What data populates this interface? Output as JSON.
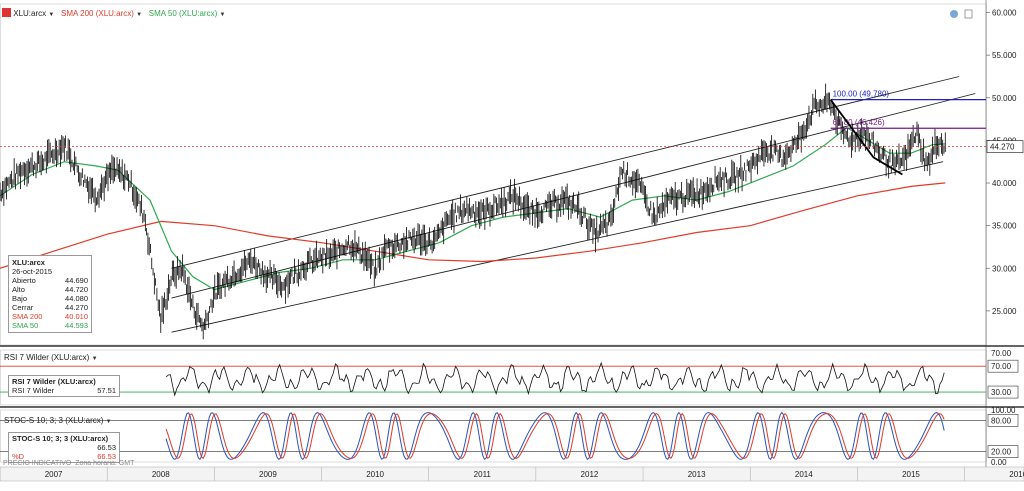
{
  "header": {
    "symbol_label": "XLU:arcx",
    "sma200_label": "SMA 200 (XLU:arcx)",
    "sma50_label": "SMA 50 (XLU:arcx)",
    "dropdown_glyph": "▼"
  },
  "colors": {
    "price": "#000000",
    "sma200": "#e23a2a",
    "sma50": "#2fa84f",
    "channel": "#222222",
    "fib100": "#2020c0",
    "fib618": "#7a1a8a",
    "rsi": "#111111",
    "stoch_k": "#2a52be",
    "stoch_d": "#e23a2a",
    "last_price_line": "#e23a2a"
  },
  "infobox": {
    "title": "XLU:arcx",
    "date": "26-oct-2015",
    "rows": [
      {
        "label": "Abierto",
        "value": "44.690"
      },
      {
        "label": "Alto",
        "value": "44.720"
      },
      {
        "label": "Bajo",
        "value": "44.080"
      },
      {
        "label": "Cerrar",
        "value": "44.270"
      },
      {
        "label": "SMA 200",
        "value": "40.010"
      },
      {
        "label": "SMA 50",
        "value": "44.593"
      }
    ]
  },
  "rsi_panel": {
    "header": "RSI 7 Wilder (XLU:arcx)",
    "box_title": "RSI 7 Wilder (XLU:arcx)",
    "box_label": "RSI 7 Wilder",
    "box_value": "57.51"
  },
  "stoch_panel": {
    "header": "STOC-S 10; 3; 3 (XLU:arcx)",
    "box_title": "STOC-S 10; 3; 3 (XLU:arcx)",
    "box_value1": "66.53",
    "box_label2": "%D",
    "box_value2": "66.53"
  },
  "footer": {
    "disclaimer": "PRECIO INDICATIVO",
    "timezone": "Zona horaria: GMT"
  },
  "chart_data": [
    {
      "type": "line",
      "name": "price",
      "x_years": [
        "2007",
        "2008",
        "2009",
        "2010",
        "2011",
        "2012",
        "2013",
        "2014",
        "2015",
        "2016"
      ],
      "y_ticks": [
        "60.000",
        "55.000",
        "50.000",
        "45.000",
        "40.000",
        "35.000",
        "30.000",
        "25.000"
      ],
      "ylim": [
        21,
        61
      ],
      "last_price": {
        "value": 44.27,
        "label": "44.270"
      },
      "series": [
        {
          "name": "XLU:arcx",
          "x": [
            2007.0,
            2007.2,
            2007.4,
            2007.6,
            2007.75,
            2007.9,
            2008.05,
            2008.2,
            2008.35,
            2008.5,
            2008.6,
            2008.7,
            2008.8,
            2008.9,
            2009.0,
            2009.1,
            2009.2,
            2009.35,
            2009.5,
            2009.65,
            2009.8,
            2009.95,
            2010.1,
            2010.25,
            2010.4,
            2010.5,
            2010.6,
            2010.75,
            2010.9,
            2011.05,
            2011.2,
            2011.35,
            2011.5,
            2011.65,
            2011.8,
            2011.95,
            2012.1,
            2012.25,
            2012.4,
            2012.55,
            2012.7,
            2012.8,
            2012.95,
            2013.1,
            2013.25,
            2013.4,
            2013.55,
            2013.7,
            2013.85,
            2014.0,
            2014.15,
            2014.3,
            2014.45,
            2014.6,
            2014.75,
            2014.85,
            2014.95,
            2015.05,
            2015.15,
            2015.25,
            2015.35,
            2015.45,
            2015.55,
            2015.65,
            2015.75,
            2015.82
          ],
          "values": [
            39.0,
            41.5,
            42.5,
            44.5,
            41.0,
            38.5,
            41.5,
            40.5,
            36.0,
            24.0,
            29.0,
            30.0,
            25.5,
            23.0,
            27.0,
            28.5,
            29.5,
            31.0,
            29.0,
            28.0,
            30.0,
            31.0,
            31.5,
            33.0,
            31.5,
            29.5,
            32.5,
            33.0,
            33.5,
            33.0,
            36.0,
            37.0,
            36.5,
            37.5,
            38.5,
            36.5,
            37.0,
            38.0,
            37.0,
            34.0,
            35.5,
            41.5,
            40.0,
            36.0,
            38.0,
            38.5,
            39.0,
            40.5,
            40.5,
            42.0,
            44.0,
            43.0,
            45.0,
            49.0,
            49.5,
            46.0,
            45.0,
            46.0,
            44.5,
            43.0,
            42.0,
            43.0,
            46.0,
            42.0,
            45.0,
            44.27
          ]
        },
        {
          "name": "SMA 200",
          "x": [
            2007.0,
            2007.5,
            2008.0,
            2008.5,
            2009.0,
            2009.5,
            2010.0,
            2010.5,
            2011.0,
            2011.5,
            2012.0,
            2012.5,
            2013.0,
            2013.5,
            2014.0,
            2014.5,
            2015.0,
            2015.5,
            2015.82
          ],
          "values": [
            30.0,
            32.0,
            34.0,
            35.5,
            35.0,
            33.8,
            33.0,
            32.0,
            31.0,
            30.8,
            31.2,
            32.0,
            33.0,
            34.2,
            35.0,
            36.8,
            38.5,
            39.6,
            40.01
          ]
        },
        {
          "name": "SMA 50",
          "x": [
            2007.0,
            2007.3,
            2007.6,
            2007.9,
            2008.1,
            2008.4,
            2008.6,
            2008.8,
            2009.0,
            2009.3,
            2009.6,
            2009.9,
            2010.2,
            2010.5,
            2010.8,
            2011.1,
            2011.4,
            2011.7,
            2012.0,
            2012.3,
            2012.6,
            2012.9,
            2013.2,
            2013.5,
            2013.8,
            2014.1,
            2014.4,
            2014.7,
            2014.9,
            2015.1,
            2015.3,
            2015.5,
            2015.7,
            2015.82
          ],
          "values": [
            38.5,
            41.0,
            42.5,
            42.0,
            41.5,
            38.0,
            32.0,
            29.0,
            27.5,
            28.5,
            29.5,
            30.0,
            31.0,
            31.0,
            32.0,
            33.0,
            35.0,
            36.0,
            36.5,
            37.0,
            36.0,
            38.0,
            38.5,
            38.0,
            39.0,
            40.5,
            42.0,
            44.5,
            46.5,
            45.0,
            43.5,
            43.5,
            44.5,
            44.593
          ]
        }
      ],
      "channel_lines": [
        {
          "x": [
            2008.6,
            2015.95
          ],
          "values": [
            30.0,
            52.5
          ]
        },
        {
          "x": [
            2008.6,
            2016.1
          ],
          "values": [
            26.5,
            50.5
          ]
        },
        {
          "x": [
            2008.6,
            2015.8
          ],
          "values": [
            22.5,
            42.5
          ]
        }
      ],
      "fib_lines": [
        {
          "label": "100.00 (49.780)",
          "value": 49.78,
          "x_start": 2014.75
        },
        {
          "label": "61.80 (46.426)",
          "value": 46.426,
          "x_start": 2014.75
        }
      ],
      "swing": {
        "x": [
          2014.75,
          2015.15,
          2015.42
        ],
        "values": [
          49.78,
          43.0,
          41.0
        ]
      }
    },
    {
      "type": "line",
      "name": "rsi",
      "y_ticks": [
        "70.00",
        "30.00"
      ],
      "y_ticks_top": "70.00",
      "ylim": [
        10,
        95
      ],
      "levels": [
        70,
        30
      ]
    },
    {
      "type": "line",
      "name": "stochastic",
      "y_ticks": [
        "100.00",
        "80.00",
        "20.00",
        "0.00"
      ],
      "ylim": [
        0,
        100
      ],
      "levels": [
        80,
        20
      ]
    }
  ]
}
